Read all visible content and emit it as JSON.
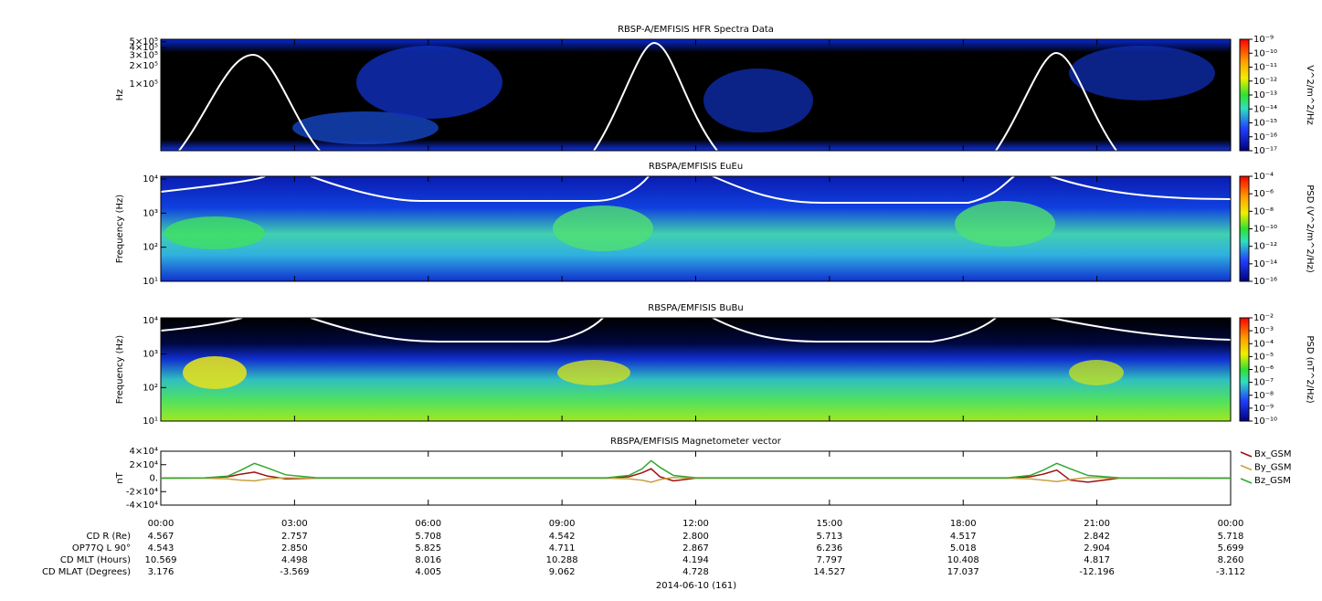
{
  "chart_data": [
    {
      "type": "spectrogram",
      "title": "RBSP-A/EMFISIS  HFR Spectra Data",
      "ylabel": "Hz",
      "log_y": true,
      "ylim": [
        8000,
        550000
      ],
      "yticks": [
        {
          "value": 100000,
          "label": "1×10⁵"
        },
        {
          "value": 200000,
          "label": "2×10⁵"
        },
        {
          "value": 300000,
          "label": "3×10⁵"
        },
        {
          "value": 400000,
          "label": "4×10⁵"
        },
        {
          "value": 500000,
          "label": "5×10⁵"
        }
      ],
      "colorbar": {
        "label": "V^2/m^2/Hz",
        "lim": [
          1e-17,
          1e-09
        ],
        "ticks": [
          {
            "value": 1e-09,
            "label": "10⁻⁹"
          },
          {
            "value": 1e-10,
            "label": "10⁻¹⁰"
          },
          {
            "value": 1e-11,
            "label": "10⁻¹¹"
          },
          {
            "value": 1e-12,
            "label": "10⁻¹²"
          },
          {
            "value": 1e-13,
            "label": "10⁻¹³"
          },
          {
            "value": 1e-14,
            "label": "10⁻¹⁴"
          },
          {
            "value": 1e-15,
            "label": "10⁻¹⁵"
          },
          {
            "value": 1e-16,
            "label": "10⁻¹⁶"
          },
          {
            "value": 1e-17,
            "label": "10⁻¹⁷"
          }
        ]
      }
    },
    {
      "type": "spectrogram",
      "title": "RBSPA/EMFISIS  EuEu",
      "ylabel": "Frequency (Hz)",
      "log_y": true,
      "ylim": [
        10,
        12000
      ],
      "yticks": [
        {
          "value": 10,
          "label": "10¹"
        },
        {
          "value": 100,
          "label": "10²"
        },
        {
          "value": 1000,
          "label": "10³"
        },
        {
          "value": 10000,
          "label": "10⁴"
        }
      ],
      "colorbar": {
        "label": "PSD (V^2/m^2/Hz)",
        "lim": [
          1e-16,
          0.0001
        ],
        "ticks": [
          {
            "value": 0.0001,
            "label": "10⁻⁴"
          },
          {
            "value": 1e-06,
            "label": "10⁻⁶"
          },
          {
            "value": 1e-08,
            "label": "10⁻⁸"
          },
          {
            "value": 1e-10,
            "label": "10⁻¹⁰"
          },
          {
            "value": 1e-12,
            "label": "10⁻¹²"
          },
          {
            "value": 1e-14,
            "label": "10⁻¹⁴"
          },
          {
            "value": 1e-16,
            "label": "10⁻¹⁶"
          }
        ]
      }
    },
    {
      "type": "spectrogram",
      "title": "RBSPA/EMFISIS  BuBu",
      "ylabel": "Frequency (Hz)",
      "log_y": true,
      "ylim": [
        10,
        12000
      ],
      "yticks": [
        {
          "value": 10,
          "label": "10¹"
        },
        {
          "value": 100,
          "label": "10²"
        },
        {
          "value": 1000,
          "label": "10³"
        },
        {
          "value": 10000,
          "label": "10⁴"
        }
      ],
      "colorbar": {
        "label": "PSD (nT^2/Hz)",
        "lim": [
          1e-10,
          0.01
        ],
        "ticks": [
          {
            "value": 0.01,
            "label": "10⁻²"
          },
          {
            "value": 0.001,
            "label": "10⁻³"
          },
          {
            "value": 0.0001,
            "label": "10⁻⁴"
          },
          {
            "value": 1e-05,
            "label": "10⁻⁵"
          },
          {
            "value": 1e-06,
            "label": "10⁻⁶"
          },
          {
            "value": 1e-07,
            "label": "10⁻⁷"
          },
          {
            "value": 1e-08,
            "label": "10⁻⁸"
          },
          {
            "value": 1e-09,
            "label": "10⁻⁹"
          },
          {
            "value": 1e-10,
            "label": "10⁻¹⁰"
          }
        ]
      }
    },
    {
      "type": "line",
      "title": "RBSPA/EMFISIS  Magnetometer vector",
      "ylabel": "nT",
      "ylim": [
        -40000,
        40000
      ],
      "yticks": [
        {
          "value": 40000,
          "label": "4×10⁴"
        },
        {
          "value": 20000,
          "label": "2×10⁴"
        },
        {
          "value": 0,
          "label": "0."
        },
        {
          "value": -20000,
          "label": "-2×10⁴"
        },
        {
          "value": -40000,
          "label": "-4×10⁴"
        }
      ],
      "xlim": [
        0,
        24
      ],
      "xticks": [
        {
          "value": 0,
          "label": "00:00"
        },
        {
          "value": 3,
          "label": "03:00"
        },
        {
          "value": 6,
          "label": "06:00"
        },
        {
          "value": 9,
          "label": "09:00"
        },
        {
          "value": 12,
          "label": "12:00"
        },
        {
          "value": 15,
          "label": "15:00"
        },
        {
          "value": 18,
          "label": "18:00"
        },
        {
          "value": 21,
          "label": "21:00"
        },
        {
          "value": 24,
          "label": "00:00"
        }
      ],
      "x": [
        0,
        1,
        1.5,
        1.8,
        2.1,
        2.4,
        2.8,
        3.5,
        10,
        10.5,
        10.8,
        11,
        11.2,
        11.5,
        12,
        19,
        19.5,
        19.8,
        20.1,
        20.4,
        20.8,
        21.5,
        24
      ],
      "series": [
        {
          "name": "Bx_GSM",
          "color": "#a01010",
          "values": [
            0,
            300,
            2000,
            6000,
            9000,
            3000,
            -1000,
            0,
            0,
            2000,
            8000,
            14000,
            2000,
            -4000,
            0,
            0,
            2000,
            6000,
            12000,
            -3000,
            -6000,
            0,
            0
          ]
        },
        {
          "name": "By_GSM",
          "color": "#c8a040",
          "values": [
            0,
            -200,
            -1000,
            -3000,
            -4000,
            -1000,
            500,
            0,
            0,
            -1000,
            -3000,
            -6000,
            -2000,
            1000,
            0,
            0,
            -1000,
            -3000,
            -5000,
            -2000,
            1000,
            0,
            0
          ]
        },
        {
          "name": "Bz_GSM",
          "color": "#30a830",
          "values": [
            0,
            500,
            3000,
            12000,
            22000,
            15000,
            5000,
            500,
            500,
            4000,
            14000,
            26000,
            16000,
            4000,
            500,
            500,
            4000,
            12000,
            22000,
            14000,
            4000,
            500,
            0
          ]
        }
      ]
    }
  ],
  "ephemeris": {
    "rows": [
      {
        "label": "CD R (Re)",
        "values": [
          "4.567",
          "2.757",
          "5.708",
          "4.542",
          "2.800",
          "5.713",
          "4.517",
          "2.842",
          "5.718"
        ]
      },
      {
        "label": "OP77Q L 90°",
        "values": [
          "4.543",
          "2.850",
          "5.825",
          "4.711",
          "2.867",
          "6.236",
          "5.018",
          "2.904",
          "5.699"
        ]
      },
      {
        "label": "CD MLT (Hours)",
        "values": [
          "10.569",
          "4.498",
          "8.016",
          "10.288",
          "4.194",
          "7.797",
          "10.408",
          "4.817",
          "8.260"
        ]
      },
      {
        "label": "CD MLAT (Degrees)",
        "values": [
          "3.176",
          "-3.569",
          "4.005",
          "9.062",
          "4.728",
          "14.527",
          "17.037",
          "-12.196",
          "-3.112"
        ]
      }
    ]
  },
  "date_label": "2014-06-10 (161)"
}
